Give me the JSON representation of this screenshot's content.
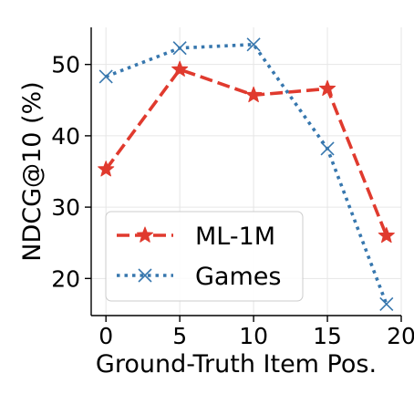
{
  "chart_data": {
    "type": "line",
    "xlabel": "Ground-Truth Item Pos.",
    "ylabel": "NDCG@10 (%)",
    "xlim": [
      -1,
      20
    ],
    "ylim": [
      14.8,
      55.2
    ],
    "xticks": [
      0,
      5,
      10,
      15,
      20
    ],
    "yticks": [
      20,
      30,
      40,
      50
    ],
    "x_tick_labels": [
      "0",
      "5",
      "10",
      "15",
      "20"
    ],
    "y_tick_labels": [
      "20",
      "30",
      "40",
      "50"
    ],
    "grid": true,
    "legend_position": "lower-left",
    "series": [
      {
        "name": "ML-1M",
        "x": [
          0,
          5,
          10,
          15,
          19
        ],
        "values": [
          35.3,
          49.3,
          45.7,
          46.6,
          26.0
        ],
        "color": "#e03a2e",
        "line_style": "dashed",
        "marker": "star"
      },
      {
        "name": "Games",
        "x": [
          0,
          5,
          10,
          15,
          19
        ],
        "values": [
          48.3,
          52.3,
          52.8,
          38.2,
          16.4
        ],
        "color": "#3777ae",
        "line_style": "dotted",
        "marker": "x"
      }
    ]
  }
}
